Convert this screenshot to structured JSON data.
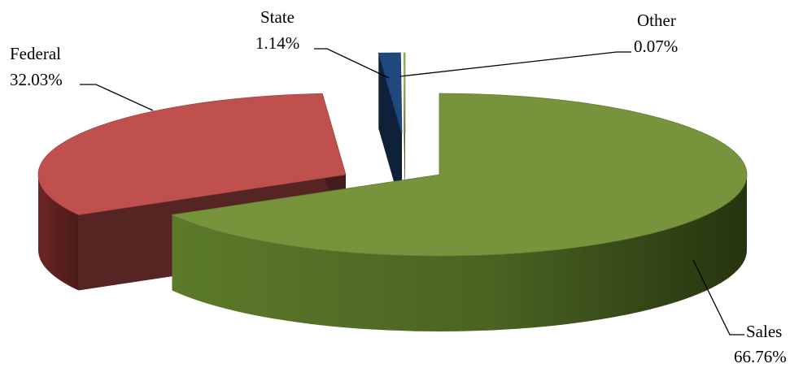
{
  "chart_data": {
    "type": "pie",
    "style": "3d-exploded",
    "slices": [
      {
        "name": "Sales",
        "label": "Sales",
        "percent_label": "66.76%",
        "value": 66.76,
        "color": "#77933C"
      },
      {
        "name": "Federal",
        "label": "Federal",
        "percent_label": "32.03%",
        "value": 32.03,
        "color": "#C0504D"
      },
      {
        "name": "State",
        "label": "State",
        "percent_label": "1.14%",
        "value": 1.14,
        "color": "#1F497D"
      },
      {
        "name": "Other",
        "label": "Other",
        "percent_label": "0.07%",
        "value": 0.07,
        "color": "#9BBB59"
      }
    ],
    "legend": "none",
    "data_labels": "category name and percentage, outside with leader lines"
  }
}
